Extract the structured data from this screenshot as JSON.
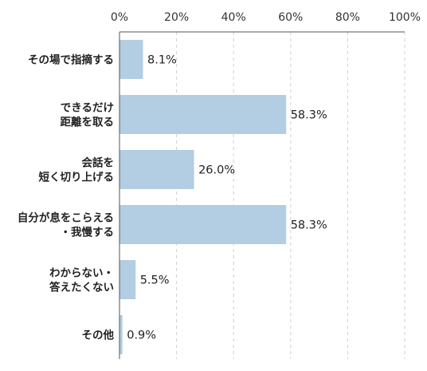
{
  "chart_data": {
    "type": "bar",
    "orientation": "horizontal",
    "categories": [
      [
        "その他"
      ],
      [
        "わからない・",
        "答えたくない"
      ],
      [
        "自分が息をこらえる",
        "・我慢する"
      ],
      [
        "会話を",
        "短く切り上げる"
      ],
      [
        "できるだけ",
        "距離を取る"
      ],
      [
        "その場で指摘する"
      ]
    ],
    "values": [
      0.9,
      5.5,
      58.3,
      26.0,
      58.3,
      8.1
    ],
    "value_labels": [
      "0.9%",
      "5.5%",
      "58.3%",
      "26.0%",
      "58.3%",
      "8.1%"
    ],
    "category_order_top_to_bottom": [
      5,
      4,
      3,
      2,
      1,
      0
    ],
    "xlim": [
      0,
      100
    ],
    "x_ticks": [
      0,
      20,
      40,
      60,
      80,
      100
    ],
    "x_tick_labels": [
      "0%",
      "20%",
      "40%",
      "60%",
      "80%",
      "100%"
    ],
    "x_axis_position": "top",
    "grid": true,
    "grid_style": "dashed vertical",
    "legend": "none",
    "bar_color": "#b3cde2"
  }
}
